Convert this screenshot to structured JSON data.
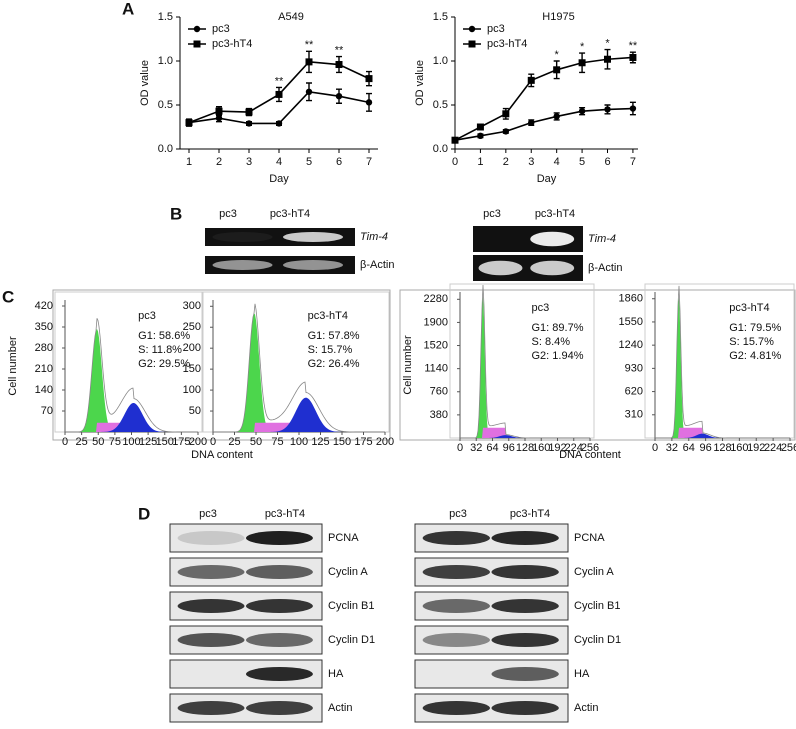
{
  "panel_labels": [
    "A",
    "B",
    "C",
    "D"
  ],
  "chart_data": [
    {
      "type": "line",
      "title": "A549",
      "xlabel": "Day",
      "ylabel": "OD value",
      "x": [
        1,
        2,
        3,
        4,
        5,
        6,
        7
      ],
      "xlim": [
        0.7,
        7.3
      ],
      "xticks": [
        1,
        2,
        3,
        4,
        5,
        6,
        7
      ],
      "ylim": [
        0,
        1.5
      ],
      "yticks": [
        {
          "value": 0,
          "label": "0.0"
        },
        {
          "value": 0.5,
          "label": "0.5"
        },
        {
          "value": 1.0,
          "label": "1.0"
        },
        {
          "value": 1.5,
          "label": "1.5"
        }
      ],
      "legend": "upper left",
      "series": [
        {
          "name": "pc3",
          "color": "#000000",
          "marker": "circle",
          "values": [
            0.3,
            0.35,
            0.29,
            0.29,
            0.65,
            0.6,
            0.53
          ],
          "errors": [
            0.04,
            0.04,
            0.02,
            0.02,
            0.1,
            0.08,
            0.1
          ]
        },
        {
          "name": "pc3-hT4",
          "color": "#000000",
          "marker": "square",
          "values": [
            0.3,
            0.43,
            0.42,
            0.62,
            0.99,
            0.96,
            0.8
          ],
          "errors": [
            0.03,
            0.05,
            0.04,
            0.08,
            0.12,
            0.09,
            0.08
          ]
        }
      ],
      "annotations": [
        {
          "x": 4,
          "text": "**"
        },
        {
          "x": 5,
          "text": "**"
        },
        {
          "x": 6,
          "text": "**"
        }
      ]
    },
    {
      "type": "line",
      "title": "H1975",
      "xlabel": "Day",
      "ylabel": "OD value",
      "x": [
        0,
        1,
        2,
        3,
        4,
        5,
        6,
        7
      ],
      "xlim": [
        0,
        7.2
      ],
      "xticks": [
        0,
        1,
        2,
        3,
        4,
        5,
        6,
        7
      ],
      "ylim": [
        0,
        1.5
      ],
      "yticks": [
        {
          "value": 0,
          "label": "0.0"
        },
        {
          "value": 0.5,
          "label": "0.5"
        },
        {
          "value": 1.0,
          "label": "1.0"
        },
        {
          "value": 1.5,
          "label": "1.5"
        }
      ],
      "legend": "upper left",
      "series": [
        {
          "name": "pc3",
          "color": "#000000",
          "marker": "circle",
          "values": [
            0.1,
            0.15,
            0.2,
            0.3,
            0.37,
            0.43,
            0.45,
            0.46
          ],
          "errors": [
            0.01,
            0.02,
            0.02,
            0.03,
            0.04,
            0.04,
            0.05,
            0.07
          ]
        },
        {
          "name": "pc3-hT4",
          "color": "#000000",
          "marker": "square",
          "values": [
            0.1,
            0.25,
            0.4,
            0.78,
            0.9,
            0.98,
            1.02,
            1.04
          ],
          "errors": [
            0.02,
            0.03,
            0.06,
            0.07,
            0.1,
            0.11,
            0.11,
            0.06
          ]
        }
      ],
      "annotations": [
        {
          "x": 4,
          "text": "*"
        },
        {
          "x": 5,
          "text": "*"
        },
        {
          "x": 6,
          "text": "*"
        },
        {
          "x": 7,
          "text": "**"
        }
      ]
    },
    {
      "type": "flow",
      "title": "pc3",
      "stats": [
        "G1: 58.6%",
        "S: 11.8%",
        "G2: 29.5%"
      ],
      "ylabel": "Cell number",
      "xlabel": "DNA content",
      "xlim": [
        0,
        200
      ],
      "xticks": [
        0,
        25,
        50,
        75,
        100,
        125,
        150,
        175,
        200
      ],
      "ylim": [
        0,
        440
      ],
      "yticks": [
        70,
        140,
        210,
        280,
        350,
        420
      ]
    },
    {
      "type": "flow",
      "title": "pc3-hT4",
      "stats": [
        "G1: 57.8%",
        "S: 15.7%",
        "G2: 26.4%"
      ],
      "xlim": [
        0,
        200
      ],
      "xticks": [
        0,
        25,
        50,
        75,
        100,
        125,
        150,
        175,
        200
      ],
      "ylim": [
        0,
        315
      ],
      "yticks": [
        50,
        100,
        150,
        200,
        250,
        300
      ]
    },
    {
      "type": "flow",
      "title": "pc3",
      "stats": [
        "G1: 89.7%",
        "S: 8.4%",
        "G2: 1.94%"
      ],
      "ylabel": "Cell number",
      "xlabel": "DNA content",
      "xlim": [
        0,
        256
      ],
      "xticks": [
        0,
        32,
        64,
        96,
        128,
        160,
        192,
        224,
        256
      ],
      "ylim": [
        0,
        2400
      ],
      "yticks": [
        380,
        760,
        1140,
        1520,
        1900,
        2280
      ]
    },
    {
      "type": "flow",
      "title": "pc3-hT4",
      "stats": [
        "G1: 79.5%",
        "S: 15.7%",
        "G2: 4.81%"
      ],
      "xlim": [
        0,
        256
      ],
      "xticks": [
        0,
        32,
        64,
        96,
        128,
        160,
        192,
        224,
        256
      ],
      "ylim": [
        0,
        1950
      ],
      "yticks": [
        310,
        620,
        930,
        1240,
        1550,
        1860
      ]
    }
  ],
  "gels": [
    {
      "lanes": [
        "pc3",
        "pc3-hT4"
      ],
      "rows": [
        "Tim-4",
        "β-Actin"
      ]
    },
    {
      "lanes": [
        "pc3",
        "pc3-hT4"
      ],
      "rows": [
        "Tim-4",
        "β-Actin"
      ]
    }
  ],
  "blots": [
    {
      "lanes": [
        "pc3",
        "pc3-hT4"
      ],
      "rows": [
        "PCNA",
        "Cyclin A",
        "Cyclin B1",
        "Cyclin D1",
        "HA",
        "Actin"
      ]
    },
    {
      "lanes": [
        "pc3",
        "pc3-hT4"
      ],
      "rows": [
        "PCNA",
        "Cyclin A",
        "Cyclin B1",
        "Cyclin D1",
        "HA",
        "Actin"
      ]
    }
  ]
}
